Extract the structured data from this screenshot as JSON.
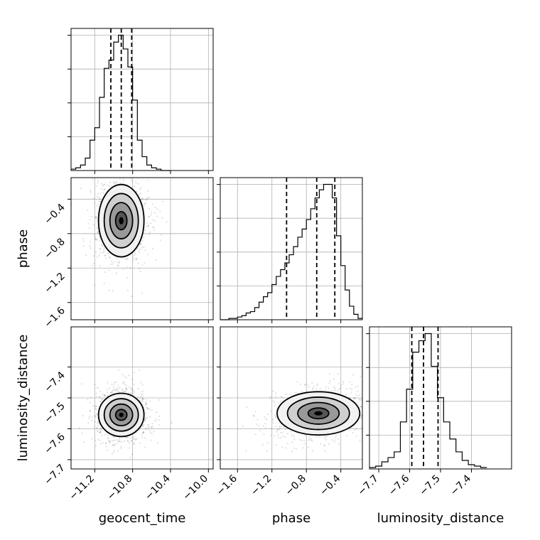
{
  "chart_data": {
    "type": "corner",
    "parameters": [
      "geocent_time",
      "phase",
      "luminosity_distance"
    ],
    "grid": true,
    "ranges": {
      "geocent_time": [
        -11.45,
        -9.95
      ],
      "phase": [
        -1.8,
        -0.15
      ],
      "luminosity_distance": [
        -7.73,
        -7.27
      ]
    },
    "ticks": {
      "geocent_time": {
        "values": [
          -11.2,
          -10.8,
          -10.4,
          -10.0
        ],
        "labels": [
          "−11.2",
          "−10.8",
          "−10.4",
          "−10.0"
        ]
      },
      "phase": {
        "values": [
          -1.6,
          -1.2,
          -0.8,
          -0.4
        ],
        "labels": [
          "−1.6",
          "−1.2",
          "−0.8",
          "−0.4"
        ]
      },
      "luminosity_distance": {
        "values": [
          -7.7,
          -7.6,
          -7.5,
          -7.4
        ],
        "labels": [
          "−7.7",
          "−7.6",
          "−7.5",
          "−7.4"
        ]
      }
    },
    "quantiles": {
      "geocent_time": [
        -11.03,
        -10.92,
        -10.81
      ],
      "phase": [
        -1.03,
        -0.68,
        -0.47
      ],
      "luminosity_distance": [
        -7.593,
        -7.555,
        -7.508
      ]
    },
    "histograms": {
      "geocent_time": {
        "bin_edges": [
          -11.45,
          -11.4,
          -11.35,
          -11.3,
          -11.25,
          -11.2,
          -11.15,
          -11.1,
          -11.05,
          -11.0,
          -10.95,
          -10.9,
          -10.85,
          -10.8,
          -10.75,
          -10.7,
          -10.65,
          -10.6,
          -10.55,
          -10.5,
          -10.45,
          -10.4
        ],
        "counts": [
          1,
          2,
          4,
          9,
          22,
          31,
          53,
          74,
          80,
          93,
          98,
          88,
          75,
          51,
          22,
          10,
          4,
          2,
          1,
          0,
          0
        ]
      },
      "phase": {
        "bin_edges": [
          -1.8,
          -1.75,
          -1.7,
          -1.65,
          -1.6,
          -1.55,
          -1.5,
          -1.45,
          -1.4,
          -1.35,
          -1.3,
          -1.25,
          -1.2,
          -1.15,
          -1.1,
          -1.05,
          -1.0,
          -0.95,
          -0.9,
          -0.85,
          -0.8,
          -0.75,
          -0.7,
          -0.65,
          -0.6,
          -0.55,
          -0.5,
          -0.45,
          -0.4,
          -0.35,
          -0.3,
          -0.25,
          -0.2,
          -0.15
        ],
        "counts": [
          0,
          0,
          1,
          1,
          2,
          3,
          5,
          6,
          9,
          13,
          17,
          20,
          26,
          32,
          37,
          42,
          48,
          54,
          61,
          67,
          74,
          82,
          90,
          96,
          100,
          100,
          90,
          62,
          40,
          22,
          10,
          4,
          1
        ]
      },
      "luminosity_distance": {
        "bin_edges": [
          -7.73,
          -7.71,
          -7.69,
          -7.67,
          -7.65,
          -7.63,
          -7.61,
          -7.59,
          -7.57,
          -7.55,
          -7.53,
          -7.51,
          -7.49,
          -7.47,
          -7.45,
          -7.43,
          -7.41,
          -7.39,
          -7.37,
          -7.35
        ],
        "counts": [
          1,
          2,
          5,
          8,
          12,
          33,
          56,
          82,
          90,
          95,
          72,
          50,
          33,
          21,
          12,
          6,
          3,
          2,
          1
        ]
      }
    },
    "contours_2d": [
      {
        "x": "geocent_time",
        "y": "phase",
        "center": [
          -10.92,
          -0.65
        ],
        "sigma": [
          0.12,
          0.21
        ],
        "corr": 0.0
      },
      {
        "x": "geocent_time",
        "y": "luminosity_distance",
        "center": [
          -10.92,
          -7.555
        ],
        "sigma": [
          0.12,
          0.035
        ],
        "corr": 0.0
      },
      {
        "x": "phase",
        "y": "luminosity_distance",
        "center": [
          -0.66,
          -7.55
        ],
        "sigma": [
          0.24,
          0.035
        ],
        "corr": 0.2
      }
    ],
    "xlabels": [
      "geocent_time",
      "phase",
      "luminosity_distance"
    ],
    "ylabels": [
      "",
      "phase",
      "luminosity_distance"
    ]
  }
}
